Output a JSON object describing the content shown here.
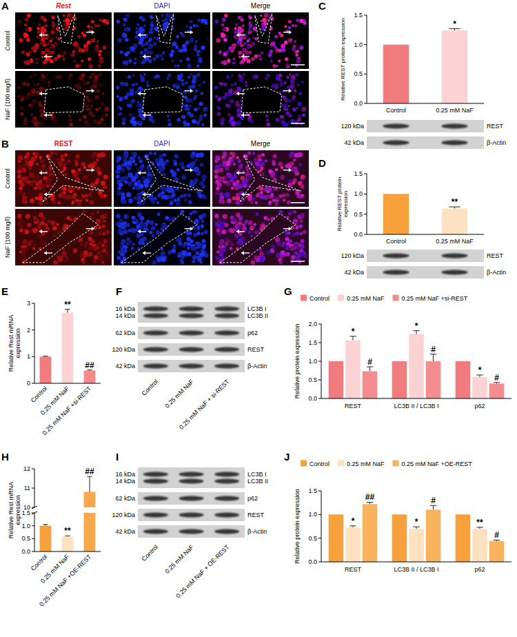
{
  "micrographs": [
    {
      "panel": "A",
      "columns": [
        "Rest",
        "DAPI",
        "Merge"
      ],
      "rows": [
        "Control",
        "NaF (100 mg/l)"
      ]
    },
    {
      "panel": "B",
      "columns": [
        "REST",
        "DAPI",
        "Merge"
      ],
      "rows": [
        "Control",
        "NaF (100 mg/l)"
      ]
    }
  ],
  "chart_data": [
    {
      "panel": "C",
      "type": "bar",
      "categories": [
        "Control",
        "0.25 mM NaF"
      ],
      "values": [
        1,
        1.24
      ],
      "errors": [
        0,
        0.03
      ],
      "annotations": [
        null,
        "*"
      ],
      "colors": [
        "#f27b7f",
        "#fbd3d4"
      ],
      "ylabel": "Relative REST protein expression",
      "ylim": [
        0,
        1.5
      ],
      "yticks": [
        {
          "value": 0,
          "label": "0.0"
        },
        {
          "value": 0.5,
          "label": "0.5"
        },
        {
          "value": 1,
          "label": "1.0"
        },
        {
          "value": 1.5,
          "label": "1.5"
        }
      ],
      "blot": {
        "rows": [
          {
            "kda": [
              "120 kDa"
            ],
            "labels": [
              "REST"
            ]
          },
          {
            "kda": [
              "42 kDa"
            ],
            "labels": [
              "β-Actin"
            ]
          }
        ]
      }
    },
    {
      "panel": "D",
      "type": "bar",
      "categories": [
        "Control",
        "0.25 mM NaF"
      ],
      "values": [
        1,
        0.64
      ],
      "errors": [
        0,
        0.04
      ],
      "annotations": [
        null,
        "**"
      ],
      "colors": [
        "#f6a13c",
        "#fde1c0"
      ],
      "ylabel": "Relative REST protein expression",
      "ylim": [
        0,
        1.5
      ],
      "yticks": [
        {
          "value": 0,
          "label": "0.0"
        },
        {
          "value": 0.5,
          "label": "0.5"
        },
        {
          "value": 1,
          "label": "1.0"
        },
        {
          "value": 1.5,
          "label": "1.5"
        }
      ],
      "blot": {
        "rows": [
          {
            "kda": [
              "120 kDa"
            ],
            "labels": [
              "REST"
            ]
          },
          {
            "kda": [
              "42 kDa"
            ],
            "labels": [
              "β-Actin"
            ]
          }
        ]
      }
    },
    {
      "panel": "E",
      "type": "bar",
      "categories": [
        "Control",
        "0.25 mM NaF",
        "0.25 mM NaF +si-REST"
      ],
      "values": [
        1,
        2.65,
        0.48
      ],
      "errors": [
        0.02,
        0.13,
        0.02
      ],
      "annotations": [
        null,
        "**",
        "##"
      ],
      "colors": [
        "#f27b7f",
        "#fbd3d4",
        "#f58a8d"
      ],
      "ylabel": "Relative Rest mRNA expression",
      "ylim": [
        0,
        3
      ],
      "yticks": [
        0,
        1,
        2,
        3
      ]
    },
    {
      "panel": "G",
      "type": "bar",
      "categories": [
        "REST",
        "LC3B II / LC3B I",
        "p62"
      ],
      "legend": "top",
      "ylabel": "Relative protein expression",
      "ylim": [
        0,
        2
      ],
      "yticks": [
        {
          "value": 0,
          "label": "0.0"
        },
        {
          "value": 0.5,
          "label": "0.5"
        },
        {
          "value": 1,
          "label": "1.0"
        },
        {
          "value": 1.5,
          "label": "1.5"
        },
        {
          "value": 2,
          "label": "2.0"
        }
      ],
      "series": [
        {
          "name": "Control",
          "color": "#f27b7f",
          "values": [
            1,
            1,
            1
          ],
          "errors": [
            0,
            0,
            0
          ],
          "annotations": [
            null,
            null,
            null
          ]
        },
        {
          "name": "0.25 mM NaF",
          "color": "#fbd3d4",
          "values": [
            1.57,
            1.73,
            0.58
          ],
          "errors": [
            0.1,
            0.09,
            0.05
          ],
          "annotations": [
            "*",
            "*",
            "*"
          ]
        },
        {
          "name": "0.25 mM NaF +si-REST",
          "color": "#f38d90",
          "values": [
            0.73,
            1.0,
            0.4
          ],
          "errors": [
            0.12,
            0.19,
            0.03
          ],
          "annotations": [
            "#",
            "#",
            "#"
          ]
        }
      ]
    },
    {
      "panel": "H",
      "type": "bar",
      "categories": [
        "Control",
        "0.25 mM NaF",
        "0.25 mM NaF +OE-REST"
      ],
      "values": [
        1,
        0.58,
        10.8
      ],
      "errors": [
        0.05,
        0.03,
        0.8
      ],
      "annotations": [
        null,
        "**",
        "##"
      ],
      "colors": [
        "#f6a13c",
        "#fde1c0",
        "#f7a84a"
      ],
      "ylabel": "Relative Rest mRNA expression",
      "ylim": [
        0,
        12
      ],
      "ybreak": [
        1.5,
        10
      ],
      "yticks": [
        {
          "value": 0,
          "label": "0.0"
        },
        {
          "value": 0.5,
          "label": "0.5"
        },
        {
          "value": 1,
          "label": "1.0"
        },
        {
          "value": 1.5,
          "label": "1.5"
        },
        10,
        11,
        12
      ]
    },
    {
      "panel": "J",
      "type": "bar",
      "categories": [
        "REST",
        "LC3B II / LC3B I",
        "p62"
      ],
      "legend": "top",
      "ylabel": "Relative protein expression",
      "ylim": [
        0,
        1.5
      ],
      "yticks": [
        {
          "value": 0,
          "label": "0.0"
        },
        {
          "value": 0.5,
          "label": "0.5"
        },
        {
          "value": 1,
          "label": "1.0"
        },
        {
          "value": 1.5,
          "label": "1.5"
        }
      ],
      "series": [
        {
          "name": "Control",
          "color": "#f6a13c",
          "values": [
            1,
            1,
            1
          ],
          "errors": [
            0,
            0,
            0
          ],
          "annotations": [
            null,
            null,
            null
          ]
        },
        {
          "name": "0.25 mM NaF",
          "color": "#fde1c0",
          "values": [
            0.73,
            0.7,
            0.7
          ],
          "errors": [
            0.03,
            0.04,
            0.03
          ],
          "annotations": [
            "*",
            "*",
            "**"
          ]
        },
        {
          "name": "0.25 mM NaF +OE-REST",
          "color": "#f8b35e",
          "values": [
            1.22,
            1.1,
            0.44
          ],
          "errors": [
            0.04,
            0.09,
            0.02
          ],
          "annotations": [
            "##",
            "#",
            "#"
          ]
        }
      ]
    }
  ],
  "blots": [
    {
      "panel": "F",
      "lanes": [
        "Control",
        "0.25 mM NaF",
        "0.25 mM NaF + si-REST"
      ],
      "rows": [
        {
          "kda": [
            "16 kDa",
            "14 kDa"
          ],
          "labels": [
            "LC3B I",
            "LC3B II"
          ]
        },
        {
          "kda": [
            "62 kDa"
          ],
          "labels": [
            "p62"
          ]
        },
        {
          "kda": [
            "120 kDa"
          ],
          "labels": [
            "REST"
          ]
        },
        {
          "kda": [
            "42 kDa"
          ],
          "labels": [
            "β-Actin"
          ]
        }
      ]
    },
    {
      "panel": "I",
      "lanes": [
        "Control",
        "0.25 mM NaF",
        "0.25 mM NaF + OE-REST"
      ],
      "rows": [
        {
          "kda": [
            "16 kDa",
            "14 kDa"
          ],
          "labels": [
            "LC3B I",
            "LC3B II"
          ]
        },
        {
          "kda": [
            "62 kDa"
          ],
          "labels": [
            "p62"
          ]
        },
        {
          "kda": [
            "120 kDa"
          ],
          "labels": [
            "REST"
          ]
        },
        {
          "kda": [
            "42 kDa"
          ],
          "labels": [
            "β-Actin"
          ]
        }
      ]
    }
  ]
}
